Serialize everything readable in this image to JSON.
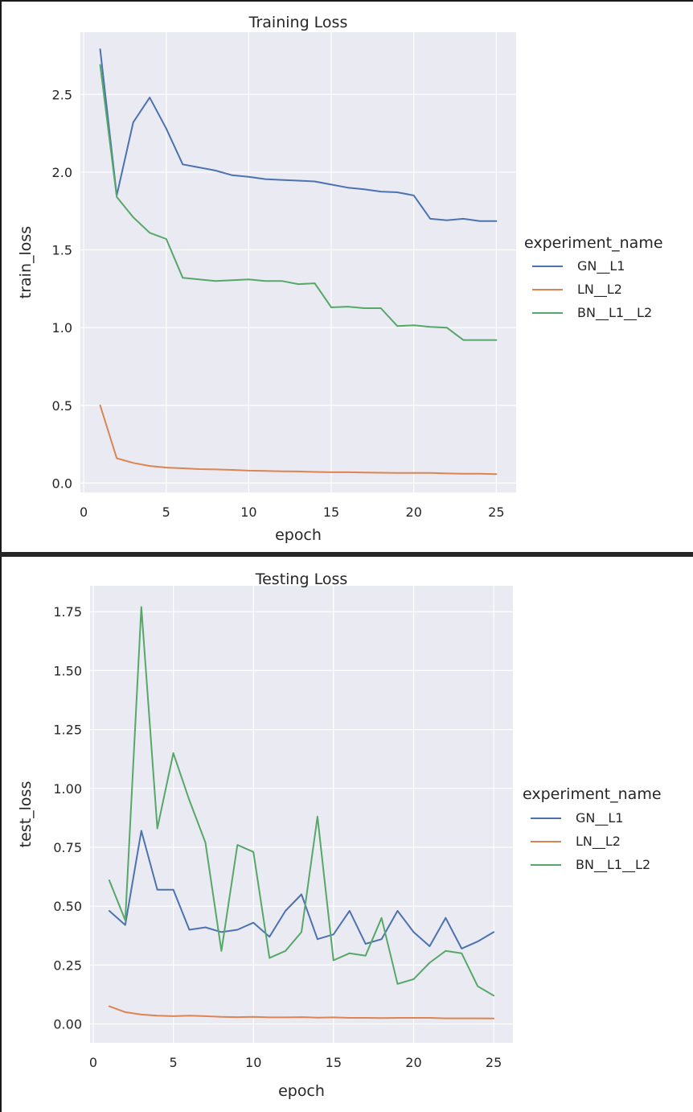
{
  "chart_data": [
    {
      "type": "line",
      "title": "Training Loss",
      "xlabel": "epoch",
      "ylabel": "train_loss",
      "xlim": [
        -0.2,
        26.2
      ],
      "ylim": [
        -0.06,
        2.9
      ],
      "xticks": [
        0,
        5,
        10,
        15,
        20,
        25
      ],
      "yticks": [
        0.0,
        0.5,
        1.0,
        1.5,
        2.0,
        2.5
      ],
      "ytick_labels": [
        "0.0",
        "0.5",
        "1.0",
        "1.5",
        "2.0",
        "2.5"
      ],
      "xtick_labels": [
        "0",
        "5",
        "10",
        "15",
        "20",
        "25"
      ],
      "grid": true,
      "legend": {
        "title": "experiment_name",
        "placement": "right"
      },
      "x": [
        1,
        2,
        3,
        4,
        5,
        6,
        7,
        8,
        9,
        10,
        11,
        12,
        13,
        14,
        15,
        16,
        17,
        18,
        19,
        20,
        21,
        22,
        23,
        24,
        25
      ],
      "series": [
        {
          "name": "GN__L1",
          "color": "#4c72b0",
          "values": [
            2.79,
            1.85,
            2.32,
            2.48,
            2.28,
            2.05,
            2.03,
            2.01,
            1.98,
            1.97,
            1.955,
            1.95,
            1.945,
            1.94,
            1.92,
            1.9,
            1.89,
            1.875,
            1.87,
            1.85,
            1.7,
            1.69,
            1.7,
            1.685,
            1.685
          ]
        },
        {
          "name": "LN__L2",
          "color": "#dd8452",
          "values": [
            0.5,
            0.16,
            0.13,
            0.11,
            0.1,
            0.095,
            0.09,
            0.088,
            0.085,
            0.08,
            0.078,
            0.076,
            0.075,
            0.072,
            0.07,
            0.07,
            0.068,
            0.067,
            0.066,
            0.065,
            0.065,
            0.062,
            0.06,
            0.06,
            0.058
          ]
        },
        {
          "name": "BN__L1__L2",
          "color": "#55a868",
          "values": [
            2.69,
            1.84,
            1.71,
            1.61,
            1.57,
            1.32,
            1.31,
            1.3,
            1.305,
            1.31,
            1.3,
            1.3,
            1.28,
            1.285,
            1.13,
            1.135,
            1.125,
            1.125,
            1.01,
            1.015,
            1.005,
            1.0,
            0.92,
            0.92,
            0.92
          ]
        }
      ]
    },
    {
      "type": "line",
      "title": "Testing Loss",
      "xlabel": "epoch",
      "ylabel": "test_loss",
      "xlim": [
        -0.2,
        26.2
      ],
      "ylim": [
        -0.08,
        1.86
      ],
      "xticks": [
        0,
        5,
        10,
        15,
        20,
        25
      ],
      "yticks": [
        0.0,
        0.25,
        0.5,
        0.75,
        1.0,
        1.25,
        1.5,
        1.75
      ],
      "ytick_labels": [
        "0.00",
        "0.25",
        "0.50",
        "0.75",
        "1.00",
        "1.25",
        "1.50",
        "1.75"
      ],
      "xtick_labels": [
        "0",
        "5",
        "10",
        "15",
        "20",
        "25"
      ],
      "grid": true,
      "legend": {
        "title": "experiment_name",
        "placement": "right"
      },
      "x": [
        1,
        2,
        3,
        4,
        5,
        6,
        7,
        8,
        9,
        10,
        11,
        12,
        13,
        14,
        15,
        16,
        17,
        18,
        19,
        20,
        21,
        22,
        23,
        24,
        25
      ],
      "series": [
        {
          "name": "GN__L1",
          "color": "#4c72b0",
          "values": [
            0.48,
            0.42,
            0.82,
            0.57,
            0.57,
            0.4,
            0.41,
            0.39,
            0.4,
            0.43,
            0.37,
            0.48,
            0.55,
            0.36,
            0.38,
            0.48,
            0.34,
            0.36,
            0.48,
            0.39,
            0.33,
            0.45,
            0.32,
            0.35,
            0.39
          ]
        },
        {
          "name": "LN__L2",
          "color": "#dd8452",
          "values": [
            0.075,
            0.05,
            0.04,
            0.035,
            0.033,
            0.035,
            0.033,
            0.03,
            0.029,
            0.03,
            0.028,
            0.028,
            0.029,
            0.027,
            0.028,
            0.026,
            0.026,
            0.025,
            0.026,
            0.026,
            0.026,
            0.024,
            0.024,
            0.024,
            0.023
          ]
        },
        {
          "name": "BN__L1__L2",
          "color": "#55a868",
          "values": [
            0.61,
            0.44,
            1.77,
            0.83,
            1.15,
            0.95,
            0.77,
            0.31,
            0.76,
            0.73,
            0.28,
            0.31,
            0.39,
            0.88,
            0.27,
            0.3,
            0.29,
            0.45,
            0.17,
            0.19,
            0.26,
            0.31,
            0.3,
            0.16,
            0.12
          ]
        }
      ]
    }
  ]
}
